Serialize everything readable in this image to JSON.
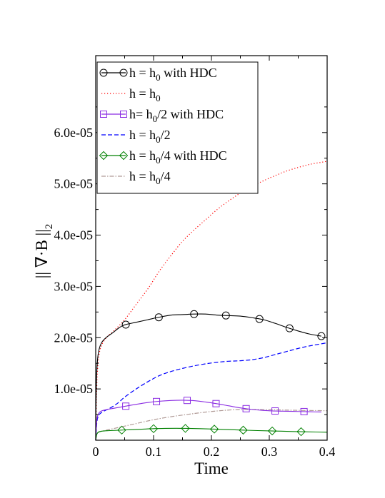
{
  "chart_data": {
    "type": "line",
    "xlabel": "Time",
    "ylabel": "|| ∇·B ||",
    "ylabel_sub": "2",
    "xlim": [
      0,
      0.4
    ],
    "ylim": [
      0,
      7.5e-05
    ],
    "x_ticks": [
      0,
      0.1,
      0.2,
      0.3,
      0.4
    ],
    "x_tick_labels": [
      "0",
      "0.1",
      "0.2",
      "0.3",
      "0.4"
    ],
    "y_ticks": [
      1e-05,
      2e-05,
      3e-05,
      4e-05,
      5e-05,
      6e-05
    ],
    "y_tick_labels": [
      "1.0e-05",
      "2.0e-05",
      "3.0e-05",
      "4.0e-05",
      "5.0e-05",
      "6.0e-05"
    ],
    "grid": false,
    "legend_position": "top-left",
    "series": [
      {
        "name": "h = h0 with HDC",
        "legend_parts": [
          [
            "h = h",
            ""
          ],
          [
            "0",
            "sub"
          ],
          [
            " with HDC",
            ""
          ]
        ],
        "color": "#000000",
        "dash": "",
        "marker": "circle",
        "x": [
          0,
          0.001,
          0.003,
          0.006,
          0.01,
          0.015,
          0.02,
          0.03,
          0.04,
          0.05,
          0.07,
          0.09,
          0.11,
          0.13,
          0.15,
          0.17,
          0.19,
          0.21,
          0.23,
          0.25,
          0.27,
          0.29,
          0.31,
          0.33,
          0.35,
          0.37,
          0.39
        ],
        "y": [
          0,
          1e-05,
          1.55e-05,
          1.78e-05,
          1.9e-05,
          1.97e-05,
          2.02e-05,
          2.1e-05,
          2.19e-05,
          2.25e-05,
          2.3e-05,
          2.35e-05,
          2.4e-05,
          2.44e-05,
          2.45e-05,
          2.46e-05,
          2.46e-05,
          2.44e-05,
          2.43e-05,
          2.42e-05,
          2.39e-05,
          2.35e-05,
          2.28e-05,
          2.2e-05,
          2.13e-05,
          2.07e-05,
          2.03e-05
        ],
        "marker_x": [
          0.052,
          0.109,
          0.17,
          0.225,
          0.283,
          0.335,
          0.39
        ]
      },
      {
        "name": "h = h0",
        "legend_parts": [
          [
            "h = h",
            ""
          ],
          [
            "0",
            "sub"
          ]
        ],
        "color": "#ff0000",
        "dash": "1.2 2.8",
        "marker": "none",
        "x": [
          0,
          0.002,
          0.005,
          0.01,
          0.02,
          0.03,
          0.05,
          0.07,
          0.09,
          0.11,
          0.13,
          0.15,
          0.17,
          0.19,
          0.21,
          0.23,
          0.25,
          0.27,
          0.29,
          0.31,
          0.33,
          0.35,
          0.37,
          0.39,
          0.4
        ],
        "y": [
          0,
          1.1e-05,
          1.6e-05,
          1.85e-05,
          2.02e-05,
          2.12e-05,
          2.35e-05,
          2.65e-05,
          2.95e-05,
          3.3e-05,
          3.6e-05,
          3.88e-05,
          4.1e-05,
          4.3e-05,
          4.5e-05,
          4.67e-05,
          4.82e-05,
          4.95e-05,
          5.06e-05,
          5.16e-05,
          5.25e-05,
          5.32e-05,
          5.38e-05,
          5.42e-05,
          5.44e-05
        ]
      },
      {
        "name": "h= h0/2 with HDC",
        "legend_parts": [
          [
            "h= h",
            ""
          ],
          [
            "0",
            "sub"
          ],
          [
            "/2 with HDC",
            ""
          ]
        ],
        "color": "#8a2be2",
        "dash": "",
        "marker": "square",
        "x": [
          0,
          0.002,
          0.005,
          0.01,
          0.02,
          0.03,
          0.05,
          0.07,
          0.09,
          0.11,
          0.13,
          0.15,
          0.17,
          0.19,
          0.21,
          0.23,
          0.25,
          0.27,
          0.29,
          0.31,
          0.33,
          0.35,
          0.37,
          0.39
        ],
        "y": [
          0,
          4e-06,
          5.2e-06,
          5.7e-06,
          6e-06,
          6.2e-06,
          6.6e-06,
          7e-06,
          7.35e-06,
          7.6e-06,
          7.75e-06,
          7.8e-06,
          7.72e-06,
          7.45e-06,
          7.1e-06,
          6.7e-06,
          6.3e-06,
          6e-06,
          5.8e-06,
          5.7e-06,
          5.65e-06,
          5.6e-06,
          5.55e-06,
          5.5e-06
        ],
        "marker_x": [
          0.052,
          0.105,
          0.158,
          0.208,
          0.26,
          0.31,
          0.36
        ]
      },
      {
        "name": "h = h0/2",
        "legend_parts": [
          [
            "h = h",
            ""
          ],
          [
            "0",
            "sub"
          ],
          [
            "/2",
            ""
          ]
        ],
        "color": "#0000ff",
        "dash": "6 3",
        "marker": "none",
        "x": [
          0,
          0.002,
          0.005,
          0.01,
          0.02,
          0.03,
          0.04,
          0.05,
          0.07,
          0.09,
          0.11,
          0.13,
          0.15,
          0.17,
          0.19,
          0.21,
          0.23,
          0.25,
          0.27,
          0.29,
          0.31,
          0.33,
          0.35,
          0.37,
          0.39,
          0.4
        ],
        "y": [
          0,
          3.5e-06,
          4.8e-06,
          5.4e-06,
          6e-06,
          6.6e-06,
          7.4e-06,
          8.4e-06,
          1e-05,
          1.14e-05,
          1.26e-05,
          1.34e-05,
          1.4e-05,
          1.45e-05,
          1.49e-05,
          1.52e-05,
          1.54e-05,
          1.55e-05,
          1.57e-05,
          1.61e-05,
          1.67e-05,
          1.73e-05,
          1.79e-05,
          1.84e-05,
          1.88e-05,
          1.9e-05
        ]
      },
      {
        "name": "h = h0/4 with HDC",
        "legend_parts": [
          [
            "h = h",
            ""
          ],
          [
            "0",
            "sub"
          ],
          [
            "/4 with HDC",
            ""
          ]
        ],
        "color": "#008000",
        "dash": "",
        "marker": "diamond",
        "x": [
          0,
          0.002,
          0.005,
          0.01,
          0.02,
          0.04,
          0.06,
          0.08,
          0.1,
          0.12,
          0.14,
          0.16,
          0.18,
          0.2,
          0.22,
          0.24,
          0.26,
          0.28,
          0.3,
          0.32,
          0.34,
          0.36,
          0.38,
          0.4
        ],
        "y": [
          0,
          1.2e-06,
          1.6e-06,
          1.75e-06,
          1.85e-06,
          1.95e-06,
          2.05e-06,
          2.15e-06,
          2.25e-06,
          2.3e-06,
          2.32e-06,
          2.3e-06,
          2.25e-06,
          2.18e-06,
          2.1e-06,
          2.02e-06,
          1.95e-06,
          1.88e-06,
          1.82e-06,
          1.76e-06,
          1.7e-06,
          1.65e-06,
          1.6e-06,
          1.55e-06
        ],
        "marker_x": [
          0.045,
          0.1,
          0.155,
          0.205,
          0.255,
          0.305,
          0.355
        ]
      },
      {
        "name": "h = h0/4",
        "legend_parts": [
          [
            "h = h",
            ""
          ],
          [
            "0",
            "sub"
          ],
          [
            "/4",
            ""
          ]
        ],
        "color": "#b09a96",
        "dash": "6 2 1.5 2",
        "marker": "none",
        "x": [
          0,
          0.002,
          0.005,
          0.01,
          0.02,
          0.04,
          0.06,
          0.08,
          0.1,
          0.12,
          0.14,
          0.16,
          0.18,
          0.2,
          0.22,
          0.24,
          0.26,
          0.28,
          0.3,
          0.32,
          0.34,
          0.36,
          0.38,
          0.4
        ],
        "y": [
          0,
          1.2e-06,
          1.55e-06,
          1.75e-06,
          2e-06,
          2.5e-06,
          3e-06,
          3.5e-06,
          4e-06,
          4.4e-06,
          4.75e-06,
          5.05e-06,
          5.35e-06,
          5.6e-06,
          5.8e-06,
          5.95e-06,
          6e-06,
          6e-06,
          5.95e-06,
          5.9e-06,
          5.85e-06,
          5.8e-06,
          5.78e-06,
          5.75e-06
        ]
      }
    ]
  }
}
